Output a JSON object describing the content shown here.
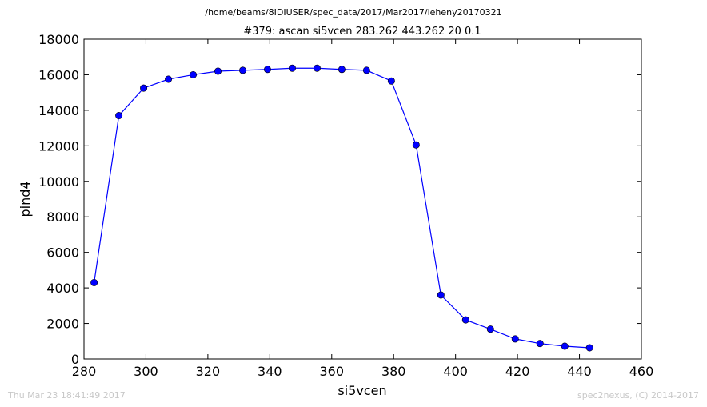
{
  "file_path": "/home/beams/8IDIUSER/spec_data/2017/Mar2017/leheny20170321",
  "footer": {
    "timestamp": "Thu Mar 23 18:41:49 2017",
    "credit": "spec2nexus, (C) 2014-2017"
  },
  "colors": {
    "line": "#0000ff",
    "marker": "#0000ff"
  },
  "chart_data": {
    "type": "line",
    "title": "#379: ascan  si5vcen 283.262 443.262  20 0.1",
    "xlabel": "si5vcen",
    "ylabel": "pind4",
    "xlim": [
      280,
      460
    ],
    "ylim": [
      0,
      18000
    ],
    "xticks": [
      280,
      300,
      320,
      340,
      360,
      380,
      400,
      420,
      440,
      460
    ],
    "yticks": [
      0,
      2000,
      4000,
      6000,
      8000,
      10000,
      12000,
      14000,
      16000,
      18000
    ],
    "grid": false,
    "x": [
      283.262,
      291.262,
      299.262,
      307.262,
      315.262,
      323.262,
      331.262,
      339.262,
      347.262,
      355.262,
      363.262,
      371.262,
      379.262,
      387.262,
      395.262,
      403.262,
      411.262,
      419.262,
      427.262,
      435.262,
      443.262
    ],
    "series": [
      {
        "values": [
          4300,
          13700,
          15250,
          15750,
          16000,
          16200,
          16250,
          16300,
          16370,
          16370,
          16300,
          16250,
          15650,
          12050,
          3600,
          2200,
          1680,
          1130,
          870,
          720,
          630
        ]
      }
    ]
  }
}
